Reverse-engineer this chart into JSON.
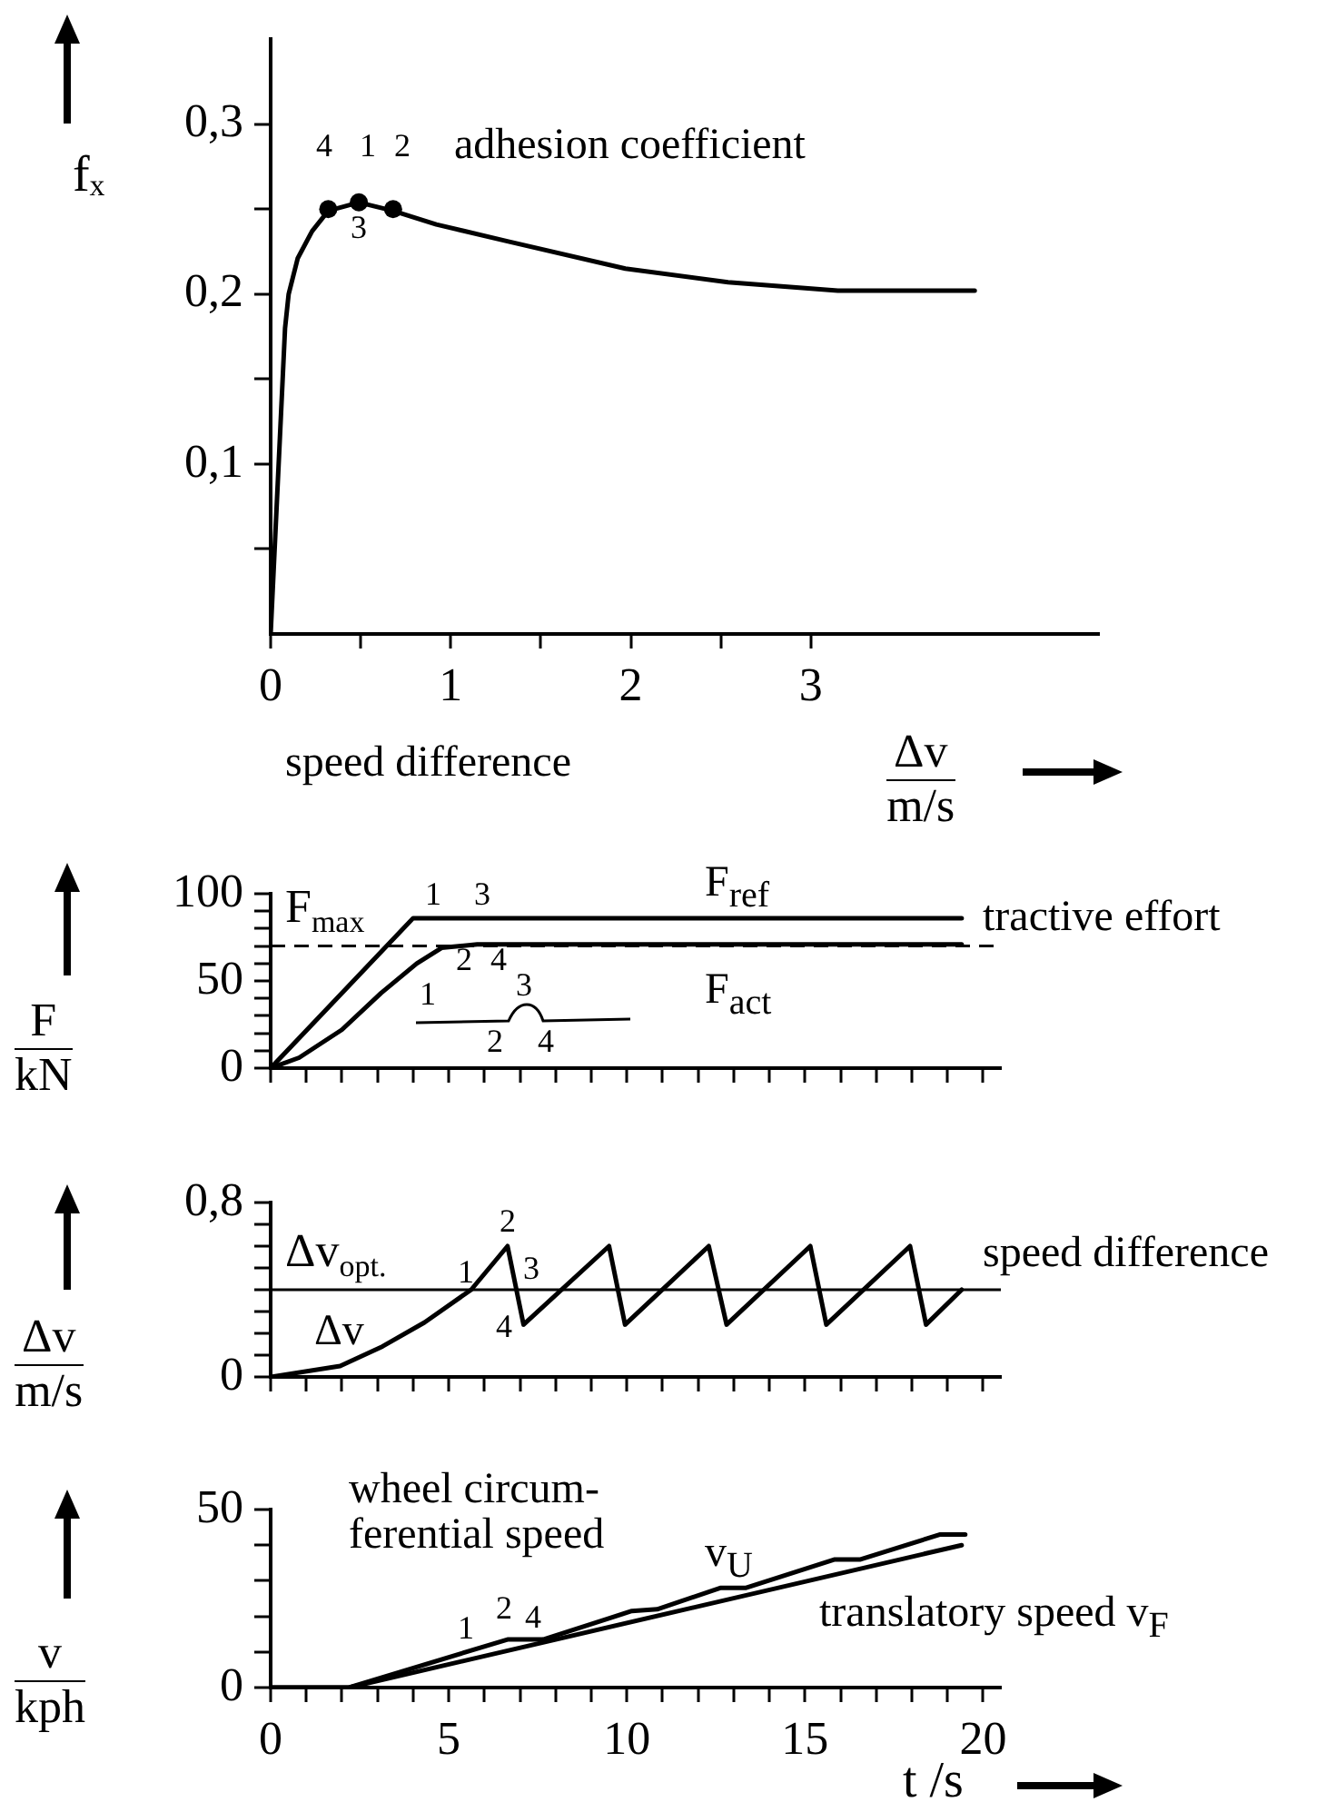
{
  "chart_data": [
    {
      "type": "line",
      "ylabel": "fₓ",
      "xlabel": "Δv\nm/s",
      "xlim": [
        0,
        4.6
      ],
      "ylim": [
        0,
        0.35
      ],
      "xticks": [
        0,
        {
          "value": 0.5,
          "label": null
        },
        1,
        {
          "value": 1.5,
          "label": null
        },
        2,
        {
          "value": 2.5,
          "label": null
        },
        3
      ],
      "yticks": [
        {
          "value": 0.05,
          "label": null
        },
        {
          "value": 0.1,
          "label": "0,1"
        },
        {
          "value": 0.15,
          "label": null
        },
        {
          "value": 0.2,
          "label": "0,2"
        },
        {
          "value": 0.25,
          "label": null
        },
        {
          "value": 0.3,
          "label": "0,3"
        }
      ],
      "series": [
        {
          "color": "#000000",
          "x": [
            0,
            0.08,
            0.1,
            0.15,
            0.23,
            0.32,
            0.49,
            0.68,
            0.92,
            1.32,
            1.97,
            2.54,
            3.15,
            3.91
          ],
          "values": [
            0,
            0.18,
            0.2,
            0.221,
            0.237,
            0.249,
            0.254,
            0.249,
            0.241,
            0.231,
            0.215,
            0.207,
            0.202,
            0.202
          ]
        },
        {
          "type": "scatter",
          "marker": "circle",
          "color": "#000000",
          "x": [
            0.32,
            0.49,
            0.68
          ],
          "values": [
            0.25,
            0.254,
            0.25
          ]
        }
      ],
      "annotations": [
        "4",
        "1",
        "2",
        "3",
        "adhesion coefficient",
        "speed difference"
      ]
    },
    {
      "type": "line",
      "ylabel": "F\nkN",
      "xlim": [
        0,
        20.5
      ],
      "ylim": [
        0,
        100
      ],
      "tick_labels": "y",
      "xticks": [
        0,
        {
          "value": 1,
          "label": null
        },
        {
          "value": 2,
          "label": null
        },
        {
          "value": 3,
          "label": null
        },
        {
          "value": 4,
          "label": null
        },
        5,
        {
          "value": 6,
          "label": null
        },
        {
          "value": 7,
          "label": null
        },
        {
          "value": 8,
          "label": null
        },
        {
          "value": 9,
          "label": null
        },
        10,
        {
          "value": 11,
          "label": null
        },
        {
          "value": 12,
          "label": null
        },
        {
          "value": 13,
          "label": null
        },
        {
          "value": 14,
          "label": null
        },
        15,
        {
          "value": 16,
          "label": null
        },
        {
          "value": 17,
          "label": null
        },
        {
          "value": 18,
          "label": null
        },
        {
          "value": 19,
          "label": null
        },
        20
      ],
      "yticks": [
        0,
        {
          "value": 10,
          "label": null
        },
        {
          "value": 20,
          "label": null
        },
        {
          "value": 30,
          "label": null
        },
        {
          "value": 40,
          "label": null
        },
        50,
        {
          "value": 60,
          "label": null
        },
        {
          "value": 70,
          "label": null
        },
        {
          "value": 80,
          "label": null
        },
        {
          "value": 90,
          "label": null
        },
        100
      ],
      "series": [
        {
          "color": "#000000",
          "x": [
            0,
            4,
            19.4
          ],
          "values": [
            0,
            86,
            86
          ]
        },
        {
          "color": "#000000",
          "x": [
            0,
            0.8,
            2,
            3.1,
            4.1,
            4.8,
            5.8,
            19.4
          ],
          "values": [
            0,
            6,
            22,
            43,
            60,
            69,
            71,
            71
          ]
        }
      ],
      "ref_lines": [
        {
          "axis": "y",
          "value": 70,
          "label": "F$_{max}$",
          "line_style": "dashed"
        }
      ],
      "annotations": [
        "F$_{ref}$",
        "F$_{act}$",
        "1",
        "3",
        "2",
        "4",
        "tractive effort",
        "1",
        "3",
        "2",
        "4"
      ]
    },
    {
      "type": "line",
      "ylabel": "Δv\nm/s",
      "xlim": [
        0,
        20.5
      ],
      "ylim": [
        0,
        0.8
      ],
      "tick_labels": "y",
      "xticks": [
        0,
        {
          "value": 1,
          "label": null
        },
        {
          "value": 2,
          "label": null
        },
        {
          "value": 3,
          "label": null
        },
        {
          "value": 4,
          "label": null
        },
        5,
        {
          "value": 6,
          "label": null
        },
        {
          "value": 7,
          "label": null
        },
        {
          "value": 8,
          "label": null
        },
        {
          "value": 9,
          "label": null
        },
        10,
        {
          "value": 11,
          "label": null
        },
        {
          "value": 12,
          "label": null
        },
        {
          "value": 13,
          "label": null
        },
        {
          "value": 14,
          "label": null
        },
        15,
        {
          "value": 16,
          "label": null
        },
        {
          "value": 17,
          "label": null
        },
        {
          "value": 18,
          "label": null
        },
        {
          "value": 19,
          "label": null
        },
        20
      ],
      "yticks": [
        0,
        {
          "value": 0.1,
          "label": null
        },
        {
          "value": 0.2,
          "label": null
        },
        {
          "value": 0.3,
          "label": null
        },
        {
          "value": 0.4,
          "label": null
        },
        {
          "value": 0.5,
          "label": null
        },
        {
          "value": 0.6,
          "label": null
        },
        {
          "value": 0.7,
          "label": null
        },
        {
          "value": 0.8,
          "label": "0,8"
        }
      ],
      "series": [
        {
          "color": "#000000",
          "x": [
            0,
            1.95,
            3.14,
            4.32,
            5.63,
            6.65,
            7.1,
            9.5,
            9.95,
            12.3,
            12.8,
            15.15,
            15.6,
            17.95,
            18.4,
            19.4
          ],
          "values": [
            0,
            0.05,
            0.14,
            0.25,
            0.4,
            0.6,
            0.24,
            0.6,
            0.24,
            0.6,
            0.24,
            0.6,
            0.24,
            0.6,
            0.24,
            0.4
          ]
        }
      ],
      "ref_lines": [
        {
          "axis": "y",
          "value": 0.4,
          "label": "Δv$_{opt.}$"
        }
      ],
      "annotations": [
        "1",
        "2",
        "3",
        "4",
        "Δv",
        "speed difference"
      ]
    },
    {
      "type": "line",
      "ylabel": "v\nkph",
      "xlabel": "t /s",
      "xlim": [
        0,
        20.5
      ],
      "ylim": [
        0,
        50
      ],
      "xticks": [
        0,
        {
          "value": 1,
          "label": null
        },
        {
          "value": 2,
          "label": null
        },
        {
          "value": 3,
          "label": null
        },
        {
          "value": 4,
          "label": null
        },
        5,
        {
          "value": 6,
          "label": null
        },
        {
          "value": 7,
          "label": null
        },
        {
          "value": 8,
          "label": null
        },
        {
          "value": 9,
          "label": null
        },
        10,
        {
          "value": 11,
          "label": null
        },
        {
          "value": 12,
          "label": null
        },
        {
          "value": 13,
          "label": null
        },
        {
          "value": 14,
          "label": null
        },
        15,
        {
          "value": 16,
          "label": null
        },
        {
          "value": 17,
          "label": null
        },
        {
          "value": 18,
          "label": null
        },
        {
          "value": 19,
          "label": null
        },
        20
      ],
      "yticks": [
        0,
        {
          "value": 10,
          "label": null
        },
        {
          "value": 20,
          "label": null
        },
        {
          "value": 30,
          "label": null
        },
        {
          "value": 40,
          "label": null
        },
        50
      ],
      "series": [
        {
          "color": "#000000",
          "x": [
            0,
            2.2,
            6.65,
            7.65,
            10.14,
            10.85,
            12.64,
            13.35,
            15.84,
            16.56,
            18.8,
            19.5
          ],
          "values": [
            0,
            0,
            13.5,
            13.5,
            21.5,
            22,
            28,
            28,
            36,
            36,
            43,
            43
          ]
        },
        {
          "color": "#000000",
          "x": [
            0,
            2.2,
            19.4
          ],
          "values": [
            0,
            0,
            40
          ]
        }
      ],
      "annotations": [
        "1",
        "2",
        "4",
        "v$_{U}$",
        "wheel circum-\nferential speed",
        "translatory speed v$_{F}$"
      ]
    }
  ]
}
